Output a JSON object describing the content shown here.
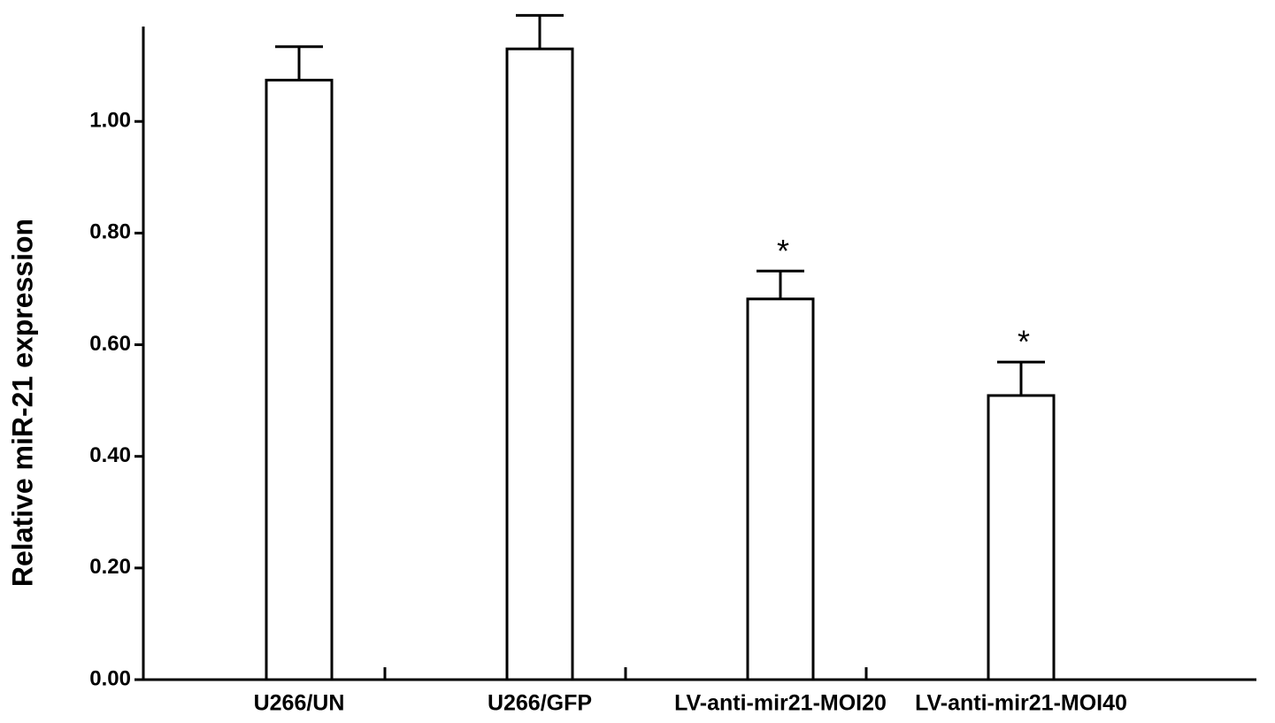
{
  "chart_data": {
    "type": "bar",
    "y_label": "Relative miR-21 expression",
    "categories": [
      "U266/UN",
      "U266/GFP",
      "LV-anti-mir21-MOI20",
      "LV-anti-mir21-MOI40"
    ],
    "values": [
      1.074,
      1.13,
      0.682,
      0.509
    ],
    "errors": [
      0.06,
      0.06,
      0.05,
      0.06
    ],
    "value_annotations": [
      null,
      null,
      "*",
      "*"
    ],
    "color": "#ffffff",
    "ylim": [
      0,
      1.17
    ],
    "yticks": [
      {
        "value": 0,
        "label": "0.00"
      },
      {
        "value": 0.2,
        "label": "0.20"
      },
      {
        "value": 0.4,
        "label": "0.40"
      },
      {
        "value": 0.6,
        "label": "0.60"
      },
      {
        "value": 0.8,
        "label": "0.80"
      },
      {
        "value": 1.0,
        "label": "1.00"
      }
    ],
    "grid": false
  }
}
